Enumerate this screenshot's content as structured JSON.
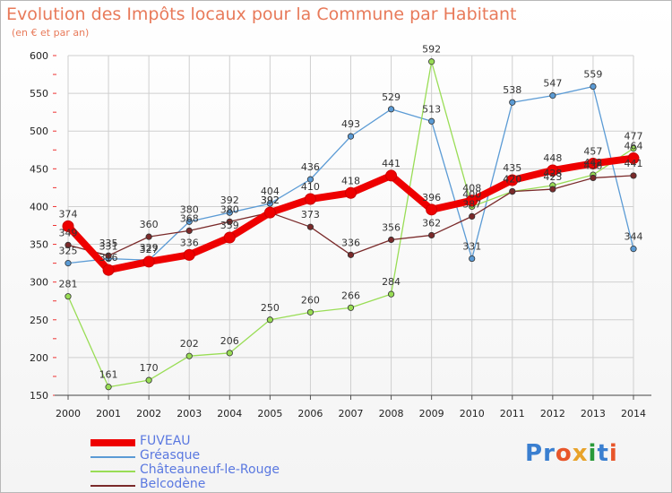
{
  "title": "Evolution des Impôts locaux pour la Commune par Habitant",
  "subtitle": "(en € et par an)",
  "logo": {
    "text": "Proxiti",
    "colors": [
      "#3a7fd0",
      "#3a7fd0",
      "#e8562a",
      "#e8a32a",
      "#2a9a3a",
      "#3a7fd0",
      "#e8562a"
    ]
  },
  "chart_data": {
    "type": "line",
    "title": "Evolution des Impôts locaux pour la Commune par Habitant",
    "x": [
      2000,
      2001,
      2002,
      2003,
      2004,
      2005,
      2006,
      2007,
      2008,
      2009,
      2010,
      2011,
      2012,
      2013,
      2014
    ],
    "ylim": [
      150,
      600
    ],
    "yticks": [
      150,
      200,
      250,
      300,
      350,
      400,
      450,
      500,
      550,
      600
    ],
    "grid": true,
    "legend": "bottom-left",
    "series": [
      {
        "name": "FUVEAU",
        "color": "#ee0000",
        "values": [
          374,
          316,
          327,
          336,
          359,
          392,
          410,
          418,
          441,
          396,
          408,
          435,
          448,
          457,
          464
        ]
      },
      {
        "name": "Gréasque",
        "color": "#5b9bd5",
        "values": [
          325,
          331,
          329,
          380,
          392,
          404,
          436,
          493,
          529,
          513,
          331,
          538,
          547,
          559,
          344
        ]
      },
      {
        "name": "Châteauneuf-le-Rouge",
        "color": "#99dd55",
        "values": [
          281,
          161,
          170,
          202,
          206,
          250,
          260,
          266,
          284,
          592,
          400,
          420,
          428,
          442,
          477
        ]
      },
      {
        "name": "Belcodène",
        "color": "#7a2a2a",
        "values": [
          349,
          335,
          360,
          368,
          380,
          392,
          373,
          336,
          356,
          362,
          387,
          420,
          423,
          438,
          441
        ]
      }
    ]
  }
}
